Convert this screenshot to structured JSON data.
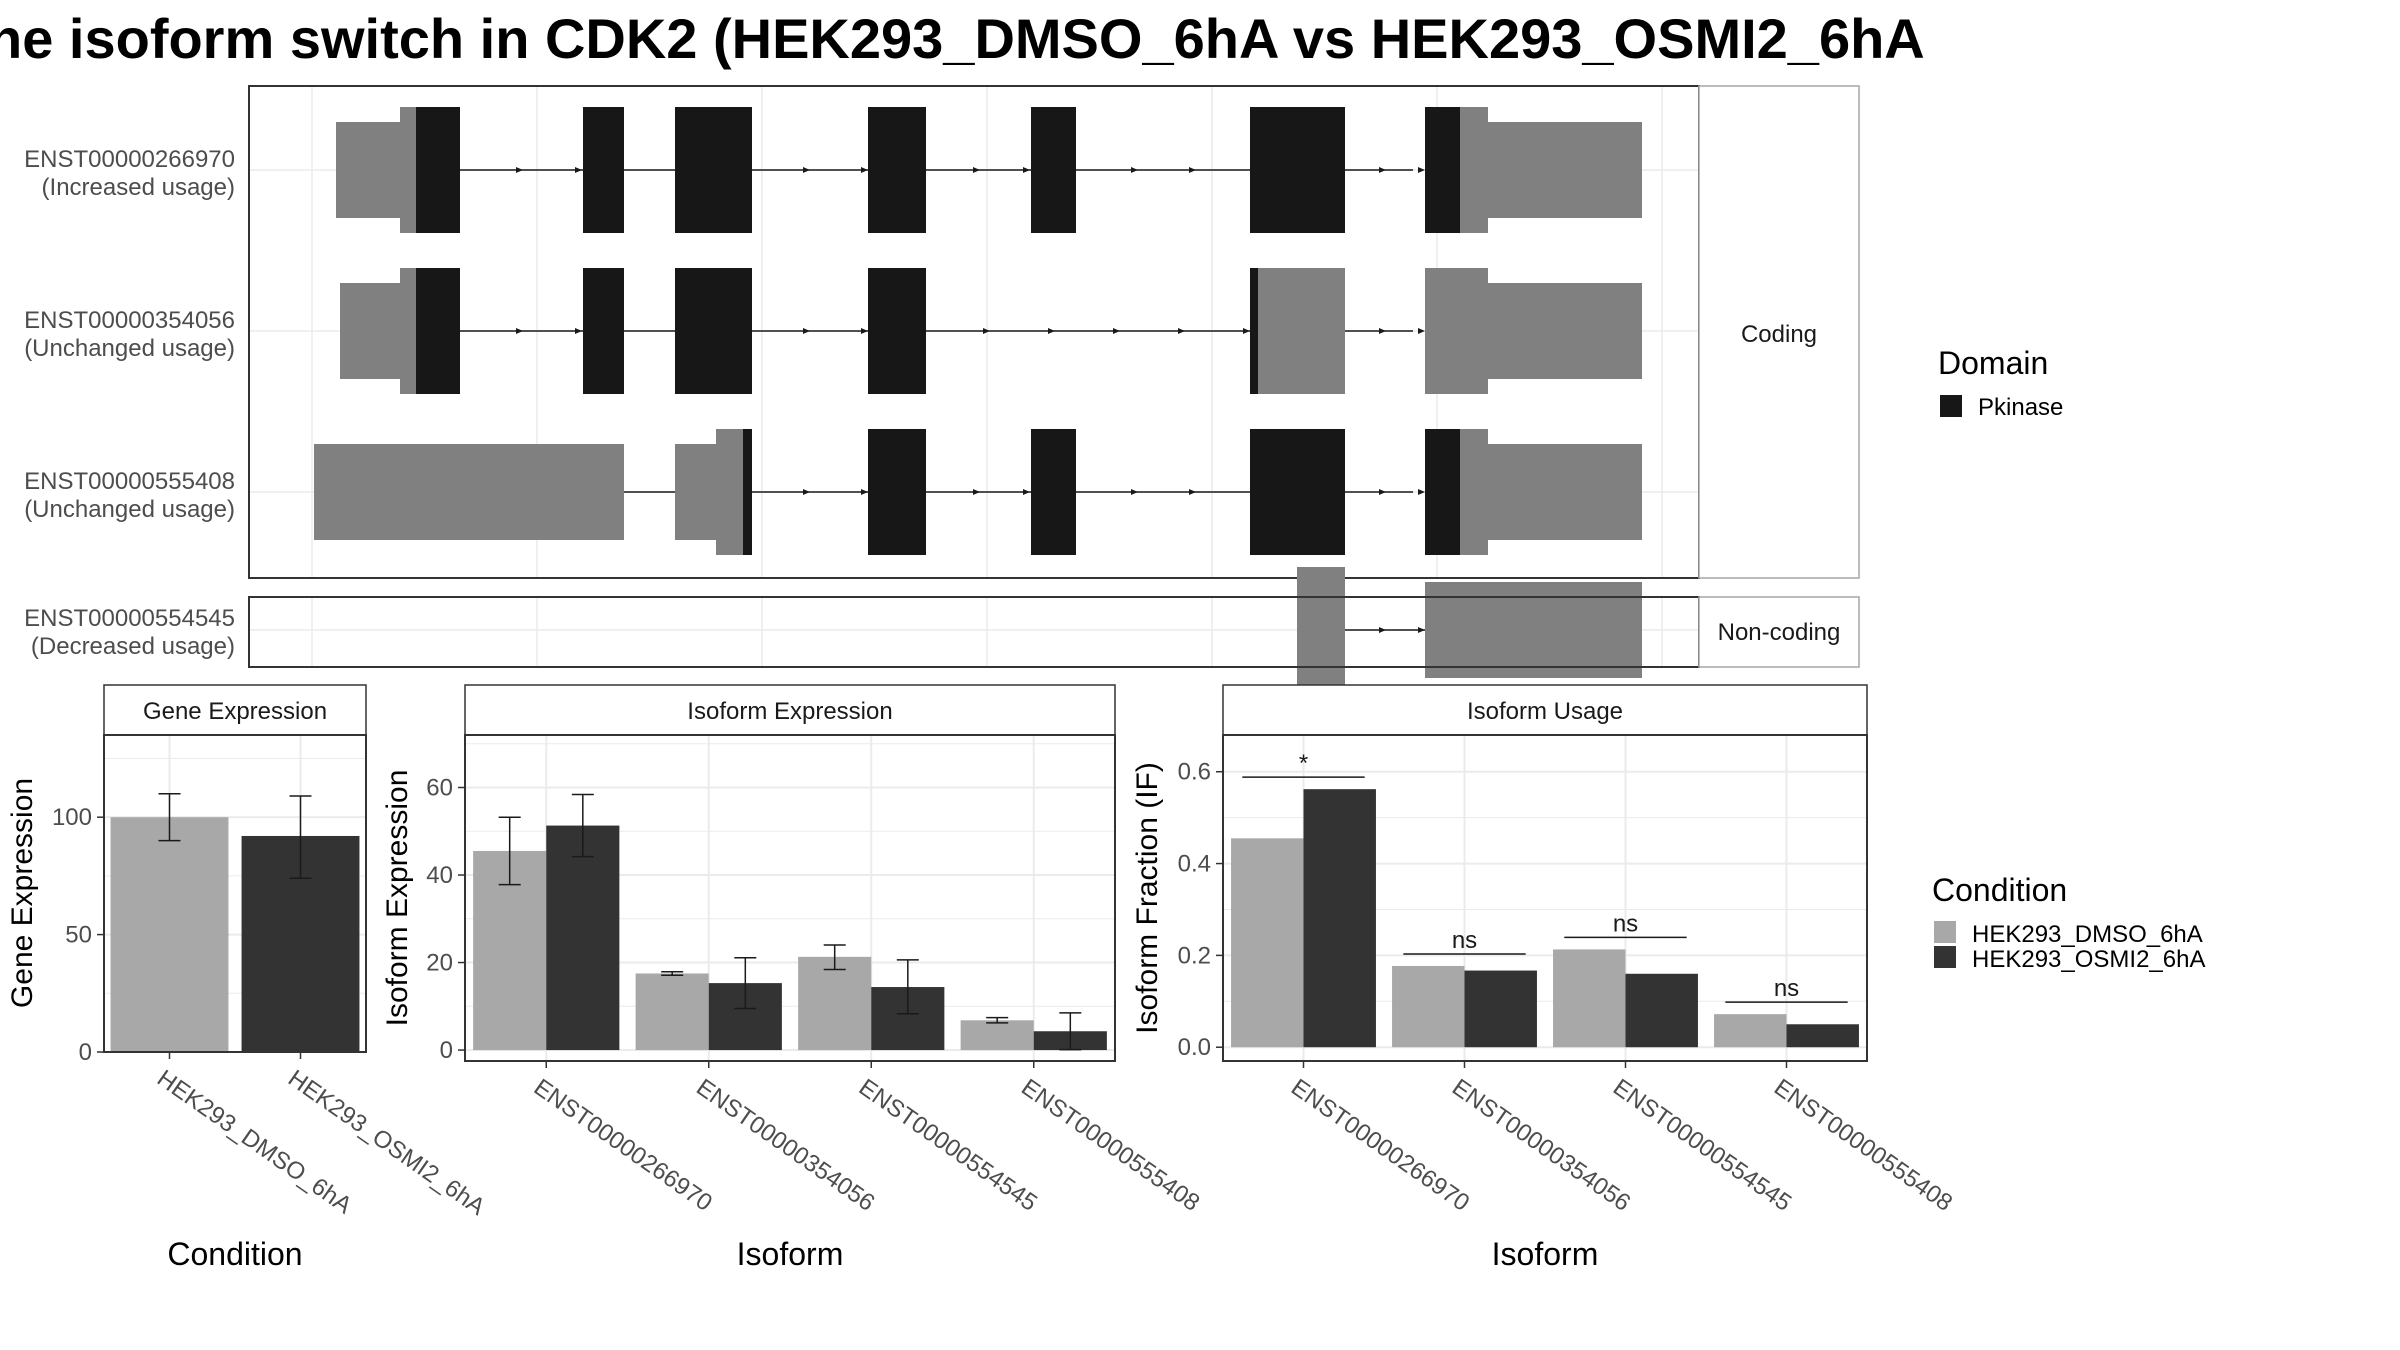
{
  "title": "he isoform switch in CDK2 (HEK293_DMSO_6hA vs HEK293_OSMI2_6hA",
  "colors": {
    "domain": "#171717",
    "utr": "#808080",
    "dmso": "#a8a8a8",
    "osmi": "#333333",
    "grid": "#ebebeb",
    "panel_border": "#333333",
    "strip_border": "#a6a6a6"
  },
  "structure": {
    "coding_label": "Coding",
    "noncoding_label": "Non-coding",
    "transcripts": [
      {
        "id": "ENST00000266970",
        "usage": "(Increased usage)",
        "group": "coding"
      },
      {
        "id": "ENST00000354056",
        "usage": "(Unchanged usage)",
        "group": "coding"
      },
      {
        "id": "ENST00000555408",
        "usage": "(Unchanged usage)",
        "group": "coding"
      },
      {
        "id": "ENST00000554545",
        "usage": "(Decreased usage)",
        "group": "noncoding"
      }
    ]
  },
  "legends": {
    "domain_title": "Domain",
    "domain_items": [
      "Pkinase"
    ],
    "condition_title": "Condition",
    "condition_items": [
      "HEK293_DMSO_6hA",
      "HEK293_OSMI2_6hA"
    ]
  },
  "chart_data": [
    {
      "type": "bar",
      "strip": "Gene Expression",
      "xlabel": "Condition",
      "ylabel": "Gene Expression",
      "ylim": [
        0,
        135
      ],
      "yticks": [
        0,
        50,
        100
      ],
      "grid": true,
      "categories": [
        "HEK293_DMSO_6hA",
        "HEK293_OSMI2_6hA"
      ],
      "values": [
        100,
        92
      ],
      "error_low": [
        90,
        74
      ],
      "error_high": [
        110,
        109
      ]
    },
    {
      "type": "bar",
      "strip": "Isoform Expression",
      "xlabel": "Isoform",
      "ylabel": "Isoform Expression",
      "ylim": [
        -2.5,
        72
      ],
      "yticks": [
        0,
        20,
        40,
        60
      ],
      "grid": true,
      "categories": [
        "ENST00000266970",
        "ENST00000354056",
        "ENST00000554545",
        "ENST00000555408"
      ],
      "series": [
        {
          "name": "HEK293_DMSO_6hA",
          "values": [
            45.5,
            17.5,
            21.3,
            6.8
          ],
          "error_low": [
            37.8,
            17.1,
            18.4,
            6.2
          ],
          "error_high": [
            53.2,
            17.9,
            24.0,
            7.4
          ]
        },
        {
          "name": "HEK293_OSMI2_6hA",
          "values": [
            51.3,
            15.3,
            14.4,
            4.3
          ],
          "error_low": [
            44.2,
            9.5,
            8.3,
            0.1
          ],
          "error_high": [
            58.4,
            21.1,
            20.6,
            8.5
          ]
        }
      ]
    },
    {
      "type": "bar",
      "strip": "Isoform Usage",
      "xlabel": "Isoform",
      "ylabel": "Isoform Fraction (IF)",
      "ylim": [
        -0.03,
        0.68
      ],
      "yticks": [
        "0.0",
        "0.2",
        "0.4",
        "0.6"
      ],
      "grid": true,
      "categories": [
        "ENST00000266970",
        "ENST00000354056",
        "ENST00000554545",
        "ENST00000555408"
      ],
      "series": [
        {
          "name": "HEK293_DMSO_6hA",
          "values": [
            0.455,
            0.177,
            0.213,
            0.072
          ]
        },
        {
          "name": "HEK293_OSMI2_6hA",
          "values": [
            0.562,
            0.167,
            0.16,
            0.05
          ]
        }
      ],
      "significance": [
        "*",
        "ns",
        "ns",
        "ns"
      ]
    }
  ]
}
